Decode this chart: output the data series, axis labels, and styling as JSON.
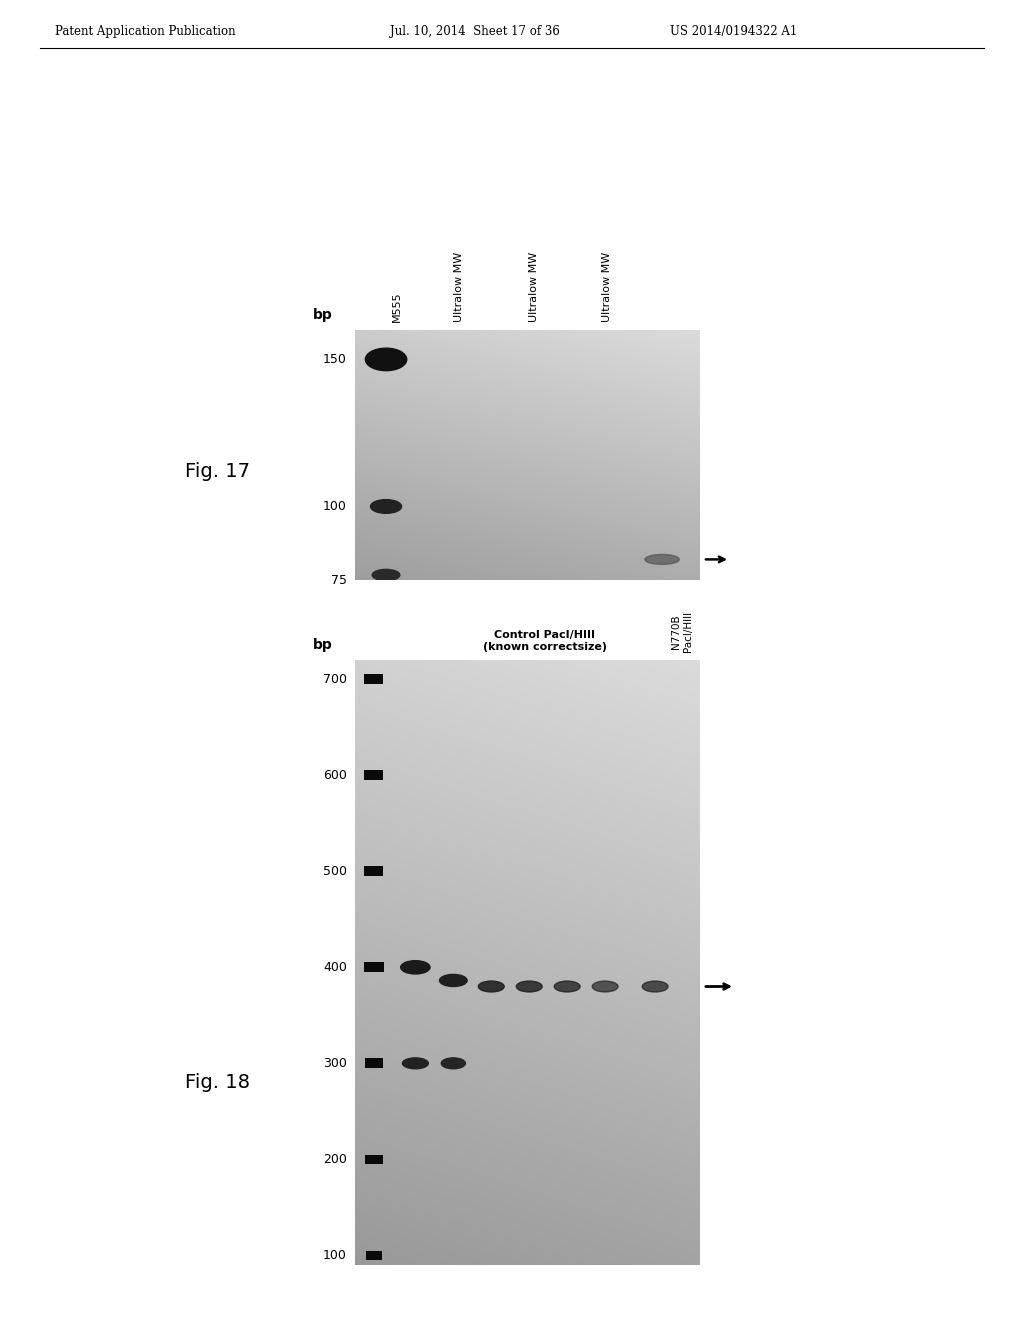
{
  "header_left": "Patent Application Publication",
  "header_mid": "Jul. 10, 2014  Sheet 17 of 36",
  "header_right": "US 2014/0194322 A1",
  "fig17_label": "Fig. 17",
  "fig18_label": "Fig. 18",
  "fig17_bp_label": "bp",
  "fig18_bp_label": "bp",
  "fig17_yticks": [
    75,
    100,
    150
  ],
  "fig18_yticks": [
    100,
    200,
    300,
    400,
    500,
    600,
    700
  ],
  "fig17_col_labels": [
    "M555",
    "Ultralow MW",
    "Ultralow MW",
    "Ultralow MW"
  ],
  "fig18_control_label": "Control PacI/HIII\n(known correctsize)",
  "fig18_n770b_label": "N770B\nPacI/HIII",
  "background_color": "#ffffff"
}
